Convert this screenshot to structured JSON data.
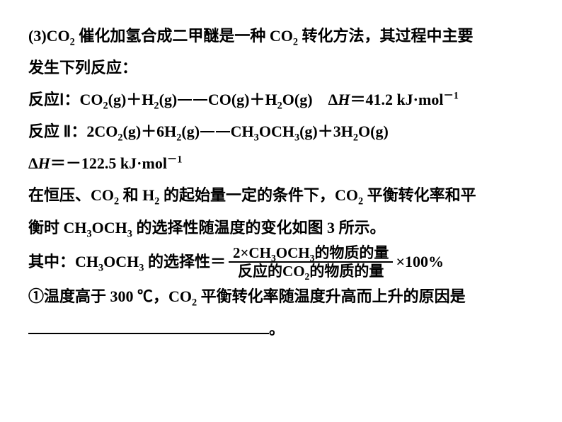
{
  "page": {
    "background_color": "#ffffff",
    "text_color": "#000000",
    "font_size_pt": 17,
    "font_weight": "bold",
    "font_family": "Times New Roman / SimSun"
  },
  "text": {
    "p1a": "(3)CO",
    "p1b": " 催化加氢合成二甲醚是一种 CO",
    "p1c": " 转化方法，其过程中主要",
    "p2": "发生下列反应：",
    "r1_label": "反应Ⅰ：",
    "r1_lhs_a": "CO",
    "r1_lhs_b": "(g)＋H",
    "r1_lhs_c": "(g)",
    "r1_rhs_a": "CO(g)＋H",
    "r1_rhs_b": "O(g)",
    "r1_dh_label": "Δ",
    "r1_dh_H": "H",
    "r1_dh_eq": "＝41.2 kJ·mol",
    "r2_label": "反应 Ⅱ：",
    "r2_lhs_a": "2CO",
    "r2_lhs_b": "(g)＋6H",
    "r2_lhs_c": "(g)",
    "r2_rhs_a": "CH",
    "r2_rhs_b": "OCH",
    "r2_rhs_c": "(g)＋3H",
    "r2_rhs_d": "O(g)",
    "r2_dh_label": "Δ",
    "r2_dh_H": "H",
    "r2_dh_eq": "＝－122.5 kJ·mol",
    "p3a": "在恒压、CO",
    "p3b": " 和 H",
    "p3c": " 的起始量一定的条件下，CO",
    "p3d": " 平衡转化率和平",
    "p4a": "衡时 CH",
    "p4b": "OCH",
    "p4c": " 的选择性随温度的变化如图 3 所示。",
    "p5a": "其中：CH",
    "p5b": "OCH",
    "p5c": " 的选择性＝",
    "frac_num_a": "2×CH",
    "frac_num_b": "OCH",
    "frac_num_c": "的物质的量",
    "frac_den_a": "反应的CO",
    "frac_den_b": "的物质的量",
    "p5d": "×100%",
    "p6a": "①温度高于 300 ℃，CO",
    "p6b": " 平衡转化率随温度升高而上升的原因是",
    "p7_end": "。",
    "sub2": "2",
    "sub3": "3",
    "supm1": "－1"
  }
}
